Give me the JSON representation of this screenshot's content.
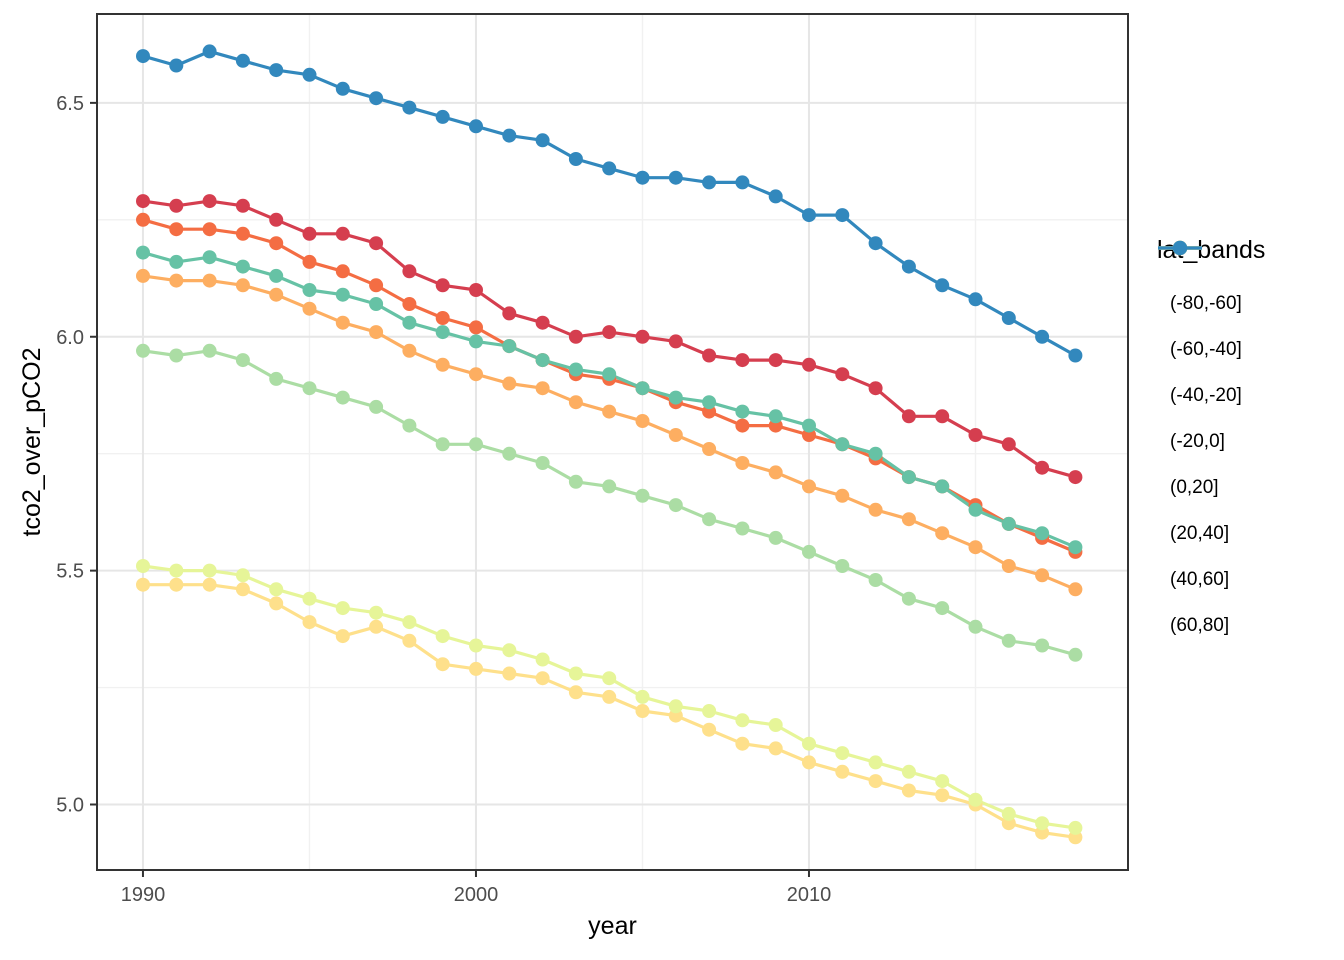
{
  "figure": {
    "background": "#ffffff"
  },
  "chart_data": {
    "type": "line",
    "title": "",
    "xlabel": "year",
    "ylabel": "tco2_over_pCO2",
    "legend_title": "lat_bands",
    "legend_position": "right",
    "grid": true,
    "x": [
      1990,
      1991,
      1992,
      1993,
      1994,
      1995,
      1996,
      1997,
      1998,
      1999,
      2000,
      2001,
      2002,
      2003,
      2004,
      2005,
      2006,
      2007,
      2008,
      2009,
      2010,
      2011,
      2012,
      2013,
      2014,
      2015,
      2016,
      2017,
      2018
    ],
    "xlim": [
      1988.62,
      2019.58
    ],
    "ylim": [
      4.86,
      6.69
    ],
    "x_ticks": [
      1990,
      2000,
      2010
    ],
    "x_tick_labels": [
      "1990",
      "2000",
      "2010"
    ],
    "x_minor_ticks": [
      1995,
      2005,
      2015
    ],
    "y_ticks": [
      5.0,
      5.5,
      6.0,
      6.5
    ],
    "y_tick_labels": [
      "5.0",
      "5.5",
      "6.0",
      "6.5"
    ],
    "y_minor_ticks": [
      5.25,
      5.75,
      6.25
    ],
    "series": [
      {
        "name": "(-80,-60]",
        "color": "#d53e4f",
        "values": [
          6.29,
          6.28,
          6.29,
          6.28,
          6.25,
          6.22,
          6.22,
          6.2,
          6.14,
          6.11,
          6.1,
          6.05,
          6.03,
          6.0,
          6.01,
          6.0,
          5.99,
          5.96,
          5.95,
          5.95,
          5.94,
          5.92,
          5.89,
          5.83,
          5.83,
          5.79,
          5.77,
          5.72,
          5.7
        ]
      },
      {
        "name": "(-60,-40]",
        "color": "#f46d43",
        "values": [
          6.25,
          6.23,
          6.23,
          6.22,
          6.2,
          6.16,
          6.14,
          6.11,
          6.07,
          6.04,
          6.02,
          5.98,
          5.95,
          5.92,
          5.91,
          5.89,
          5.86,
          5.84,
          5.81,
          5.81,
          5.79,
          5.77,
          5.74,
          5.7,
          5.68,
          5.64,
          5.6,
          5.57,
          5.54
        ]
      },
      {
        "name": "(-40,-20]",
        "color": "#fdae61",
        "values": [
          6.13,
          6.12,
          6.12,
          6.11,
          6.09,
          6.06,
          6.03,
          6.01,
          5.97,
          5.94,
          5.92,
          5.9,
          5.89,
          5.86,
          5.84,
          5.82,
          5.79,
          5.76,
          5.73,
          5.71,
          5.68,
          5.66,
          5.63,
          5.61,
          5.58,
          5.55,
          5.51,
          5.49,
          5.46
        ]
      },
      {
        "name": "(-20,0]",
        "color": "#fee08b",
        "values": [
          5.47,
          5.47,
          5.47,
          5.46,
          5.43,
          5.39,
          5.36,
          5.38,
          5.35,
          5.3,
          5.29,
          5.28,
          5.27,
          5.24,
          5.23,
          5.2,
          5.19,
          5.16,
          5.13,
          5.12,
          5.09,
          5.07,
          5.05,
          5.03,
          5.02,
          5.0,
          4.96,
          4.94,
          4.93
        ]
      },
      {
        "name": "(0,20]",
        "color": "#e6f598",
        "values": [
          5.51,
          5.5,
          5.5,
          5.49,
          5.46,
          5.44,
          5.42,
          5.41,
          5.39,
          5.36,
          5.34,
          5.33,
          5.31,
          5.28,
          5.27,
          5.23,
          5.21,
          5.2,
          5.18,
          5.17,
          5.13,
          5.11,
          5.09,
          5.07,
          5.05,
          5.01,
          4.98,
          4.96,
          4.95
        ]
      },
      {
        "name": "(20,40]",
        "color": "#abdda4",
        "values": [
          5.97,
          5.96,
          5.97,
          5.95,
          5.91,
          5.89,
          5.87,
          5.85,
          5.81,
          5.77,
          5.77,
          5.75,
          5.73,
          5.69,
          5.68,
          5.66,
          5.64,
          5.61,
          5.59,
          5.57,
          5.54,
          5.51,
          5.48,
          5.44,
          5.42,
          5.38,
          5.35,
          5.34,
          5.32
        ]
      },
      {
        "name": "(40,60]",
        "color": "#66c2a5",
        "values": [
          6.18,
          6.16,
          6.17,
          6.15,
          6.13,
          6.1,
          6.09,
          6.07,
          6.03,
          6.01,
          5.99,
          5.98,
          5.95,
          5.93,
          5.92,
          5.89,
          5.87,
          5.86,
          5.84,
          5.83,
          5.81,
          5.77,
          5.75,
          5.7,
          5.68,
          5.63,
          5.6,
          5.58,
          5.55
        ]
      },
      {
        "name": "(60,80]",
        "color": "#3288bd",
        "values": [
          6.6,
          6.58,
          6.61,
          6.59,
          6.57,
          6.56,
          6.53,
          6.51,
          6.49,
          6.47,
          6.45,
          6.43,
          6.42,
          6.38,
          6.36,
          6.34,
          6.34,
          6.33,
          6.33,
          6.3,
          6.26,
          6.26,
          6.2,
          6.15,
          6.11,
          6.08,
          6.04,
          6.0,
          5.96
        ]
      }
    ],
    "theme": {
      "panel_border": "#333333",
      "grid_major": "#e6e6e6",
      "grid_minor": "#f1f1f1",
      "tick_color": "#333333",
      "tick_label_color": "#4d4d4d",
      "axis_title_color": "#000000",
      "point_radius": 7,
      "line_width": 3.2
    }
  }
}
